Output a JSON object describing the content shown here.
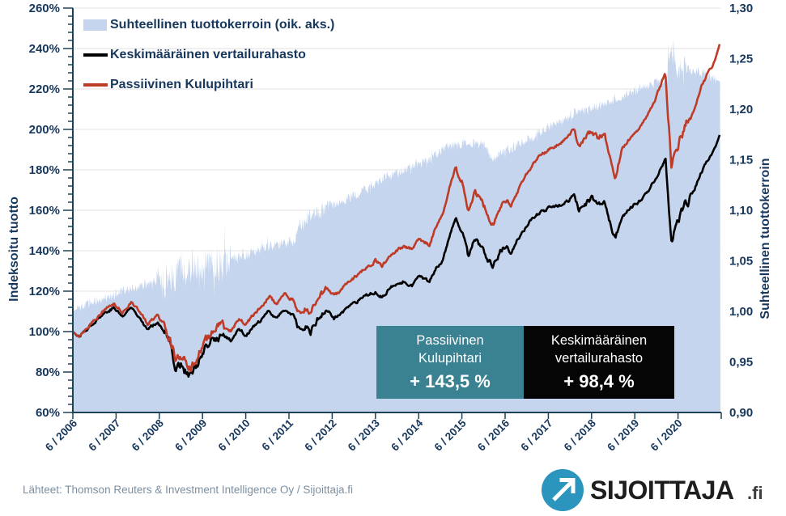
{
  "figure": {
    "background": "#FFFFFF",
    "legend": {
      "items": [
        {
          "label": "Suhteellinen tuottokerroin (oik. aks.)",
          "swatch": "area",
          "color": "#C6D5EE"
        },
        {
          "label": "Keskimääräinen vertailurahasto",
          "swatch": "line",
          "color": "#000000"
        },
        {
          "label": "Passiivinen Kulupihtari",
          "swatch": "line",
          "color": "#BE3B27"
        }
      ]
    },
    "callouts": {
      "kulupihtari": {
        "line1": "Passiivinen",
        "line2": "Kulupihtari",
        "value": "+ 143,5 %",
        "bg": "#3A8191"
      },
      "vertailurahasto": {
        "line1": "Keskimääräinen",
        "line2": "vertailurahasto",
        "value": "+ 98,4 %",
        "bg": "#050505"
      }
    },
    "footer": {
      "source_text": "Lähteet: Thomson Reuters & Investment Intelligence Oy / Sijoittaja.fi"
    },
    "logo": {
      "text": "SIJOITTAJA",
      "suffix": ".fi",
      "circle_color": "#2B95BD",
      "arrow": "up-right-arrow"
    }
  },
  "chart_data": {
    "type": "area",
    "subtype": "two indexed-return lines (left axis) + relative-performance ratio area (right axis)",
    "title": "",
    "left_axis": {
      "title": "Indeksoitu tuotto",
      "min": 60,
      "max": 260,
      "step": 20,
      "minor_step": 4,
      "ticks": [
        "260%",
        "240%",
        "220%",
        "200%",
        "180%",
        "160%",
        "140%",
        "120%",
        "100%",
        "80%",
        "60%"
      ]
    },
    "right_axis": {
      "title": "Suhteellinen tuottokerroin",
      "min": 0.9,
      "max": 1.3,
      "step": 0.05,
      "ticks": [
        "1,30",
        "1,25",
        "1,20",
        "1,15",
        "1,10",
        "1,05",
        "1,00",
        "0,95",
        "0,90"
      ]
    },
    "x_axis": {
      "labels": [
        "6 / 2006",
        "6 / 2007",
        "6 / 2008",
        "6 / 2009",
        "6 / 2010",
        "6 / 2011",
        "6 / 2012",
        "6 / 2013",
        "6 / 2014",
        "6 / 2015",
        "6 / 2016",
        "6 / 2017",
        "6 / 2018",
        "6 / 2019",
        "6 / 2020"
      ],
      "start_year_decimal": 2006.45,
      "end_year_decimal": 2021.43,
      "label_rotation_deg": -45
    },
    "grid": {
      "horizontal": true,
      "color": "#E0E0E0"
    },
    "legend_position": "top-left-inside",
    "series": [
      {
        "name": "Suhteellinen tuottokerroin (oik. aks.)",
        "type": "area",
        "axis": "right",
        "color": "#C6D5EE",
        "derived_as": "Passiivinen Kulupihtari / Keskimääräinen vertailurahasto",
        "start": 1.0,
        "end": 1.227,
        "covid_spike_2020": 1.26
      },
      {
        "name": "Keskimääräinen vertailurahasto",
        "type": "line",
        "axis": "left",
        "color": "#000000",
        "start_pct": 100,
        "end_pct": 198.4,
        "total_return": "+ 98,4 %"
      },
      {
        "name": "Passiivinen Kulupihtari",
        "type": "line",
        "axis": "left",
        "color": "#BE3B27",
        "start_pct": 100,
        "end_pct": 243.5,
        "total_return": "+ 143,5 %"
      }
    ],
    "waypoints_columns": [
      "year_decimal",
      "passiivinen_kulupihtari_pct",
      "keskimaarainen_vertailurahasto_pct"
    ],
    "waypoints": [
      [
        2006.45,
        100,
        100
      ],
      [
        2006.58,
        97.5,
        97.2
      ],
      [
        2006.77,
        102,
        101.4
      ],
      [
        2007.0,
        107,
        105.9
      ],
      [
        2007.2,
        111,
        109.5
      ],
      [
        2007.4,
        113.5,
        111.7
      ],
      [
        2007.6,
        109.5,
        107.4
      ],
      [
        2007.8,
        114.5,
        112.0
      ],
      [
        2008.0,
        110,
        107.3
      ],
      [
        2008.17,
        103.5,
        100.8
      ],
      [
        2008.4,
        108,
        104.9
      ],
      [
        2008.6,
        103,
        99.8
      ],
      [
        2008.75,
        93,
        89.8
      ],
      [
        2008.83,
        85,
        81.8
      ],
      [
        2008.95,
        87.5,
        84.1
      ],
      [
        2009.05,
        84,
        80.6
      ],
      [
        2009.17,
        81,
        77.6
      ],
      [
        2009.33,
        88,
        84.2
      ],
      [
        2009.5,
        94,
        89.8
      ],
      [
        2009.67,
        100,
        95.4
      ],
      [
        2009.9,
        103,
        98.1
      ],
      [
        2010.1,
        100.5,
        95.6
      ],
      [
        2010.3,
        107,
        101.6
      ],
      [
        2010.45,
        103.5,
        98.1
      ],
      [
        2010.6,
        107.5,
        101.6
      ],
      [
        2010.8,
        112,
        105.4
      ],
      [
        2011.0,
        117.5,
        110.4
      ],
      [
        2011.15,
        113.5,
        106.5
      ],
      [
        2011.35,
        118.5,
        111.0
      ],
      [
        2011.55,
        115.5,
        108.0
      ],
      [
        2011.7,
        108,
        99.5
      ],
      [
        2011.85,
        112,
        102.7
      ],
      [
        2011.95,
        109,
        99.8
      ],
      [
        2012.15,
        118,
        107.5
      ],
      [
        2012.35,
        121.5,
        110.3
      ],
      [
        2012.5,
        117.5,
        106.3
      ],
      [
        2012.75,
        123,
        110.8
      ],
      [
        2013.0,
        127.5,
        114.3
      ],
      [
        2013.25,
        132,
        117.7
      ],
      [
        2013.45,
        135,
        119.8
      ],
      [
        2013.6,
        132.5,
        117.2
      ],
      [
        2013.85,
        139,
        122.4
      ],
      [
        2014.1,
        142,
        124.6
      ],
      [
        2014.3,
        140.5,
        122.9
      ],
      [
        2014.45,
        146,
        127.5
      ],
      [
        2014.7,
        143,
        124.3
      ],
      [
        2014.85,
        152,
        131.6
      ],
      [
        2015.0,
        157,
        135.3
      ],
      [
        2015.15,
        170,
        146.2
      ],
      [
        2015.3,
        181,
        155.4
      ],
      [
        2015.45,
        174,
        149.2
      ],
      [
        2015.6,
        160,
        137.3
      ],
      [
        2015.75,
        170,
        145.8
      ],
      [
        2015.9,
        165,
        141.5
      ],
      [
        2016.1,
        155,
        134.3
      ],
      [
        2016.18,
        153,
        132.8
      ],
      [
        2016.35,
        162,
        140.2
      ],
      [
        2016.5,
        165,
        142.4
      ],
      [
        2016.58,
        161,
        138.8
      ],
      [
        2016.75,
        170,
        146.0
      ],
      [
        2017.0,
        180,
        153.8
      ],
      [
        2017.25,
        187,
        158.9
      ],
      [
        2017.45,
        190,
        160.8
      ],
      [
        2017.7,
        193,
        162.6
      ],
      [
        2017.9,
        196,
        164.4
      ],
      [
        2018.05,
        201,
        168.0
      ],
      [
        2018.15,
        191,
        159.5
      ],
      [
        2018.35,
        197,
        164.2
      ],
      [
        2018.45,
        199,
        165.6
      ],
      [
        2018.6,
        196,
        162.8
      ],
      [
        2018.75,
        198,
        164.2
      ],
      [
        2018.9,
        183,
        151.5
      ],
      [
        2019.0,
        177,
        146.4
      ],
      [
        2019.15,
        190,
        156.8
      ],
      [
        2019.35,
        196,
        161.3
      ],
      [
        2019.45,
        198,
        162.6
      ],
      [
        2019.6,
        202,
        165.5
      ],
      [
        2019.75,
        207,
        169.2
      ],
      [
        2019.9,
        214,
        174.6
      ],
      [
        2020.0,
        219,
        178.5
      ],
      [
        2020.16,
        228,
        185.6
      ],
      [
        2020.3,
        181,
        144.0
      ],
      [
        2020.45,
        193,
        155.8
      ],
      [
        2020.6,
        201,
        162.3
      ],
      [
        2020.72,
        205,
        165.5
      ],
      [
        2020.85,
        212,
        171.3
      ],
      [
        2021.0,
        222,
        179.5
      ],
      [
        2021.15,
        228,
        184.8
      ],
      [
        2021.3,
        234,
        190.3
      ],
      [
        2021.43,
        243.5,
        198.4
      ]
    ],
    "colors": {
      "axis_text": "#17375D",
      "axis_line": "#1B4257",
      "area_fill": "#C6D5EE",
      "line_black": "#000000",
      "line_red": "#BE3B27"
    }
  }
}
